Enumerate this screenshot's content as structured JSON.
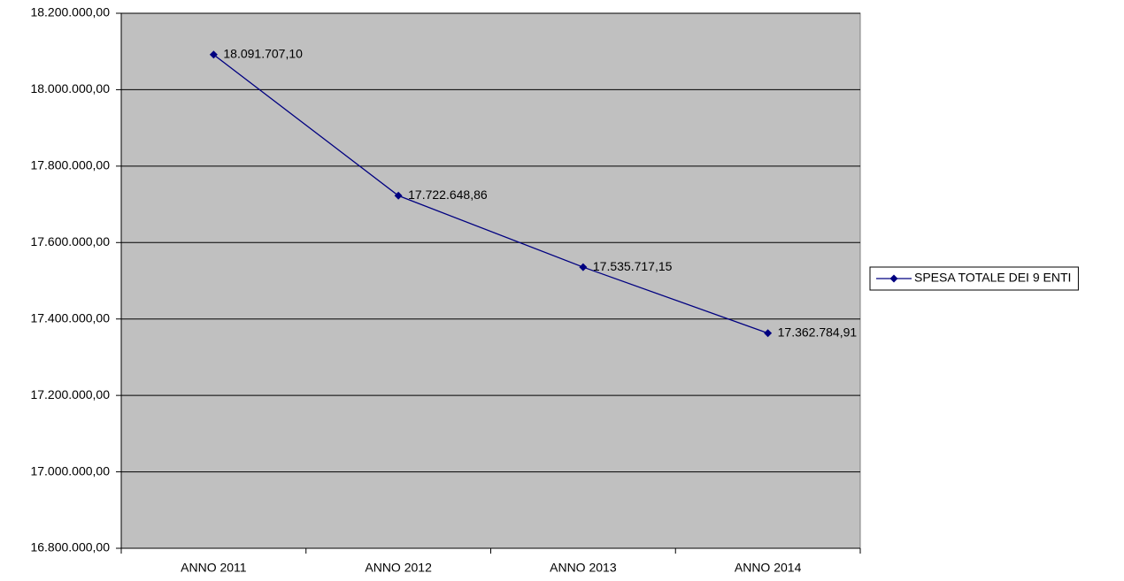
{
  "chart_data": {
    "type": "line",
    "categories": [
      "ANNO 2011",
      "ANNO 2012",
      "ANNO 2013",
      "ANNO 2014"
    ],
    "series": [
      {
        "name": "SPESA TOTALE DEI 9 ENTI",
        "color": "#000080",
        "values": [
          18091707.1,
          17722648.86,
          17535717.15,
          17362784.91
        ],
        "value_labels": [
          "18.091.707,10",
          "17.722.648,86",
          "17.535.717,15",
          "17.362.784,91"
        ]
      }
    ],
    "ylim": [
      16800000,
      18200000
    ],
    "yticks": [
      {
        "value": 16800000,
        "label": "16.800.000,00"
      },
      {
        "value": 17000000,
        "label": "17.000.000,00"
      },
      {
        "value": 17200000,
        "label": "17.200.000,00"
      },
      {
        "value": 17400000,
        "label": "17.400.000,00"
      },
      {
        "value": 17600000,
        "label": "17.600.000,00"
      },
      {
        "value": 17800000,
        "label": "17.800.000,00"
      },
      {
        "value": 18000000,
        "label": "18.000.000,00"
      },
      {
        "value": 18200000,
        "label": "18.200.000,00"
      }
    ],
    "grid": true,
    "legend": "right",
    "plot_color": "#c0c0c0"
  }
}
